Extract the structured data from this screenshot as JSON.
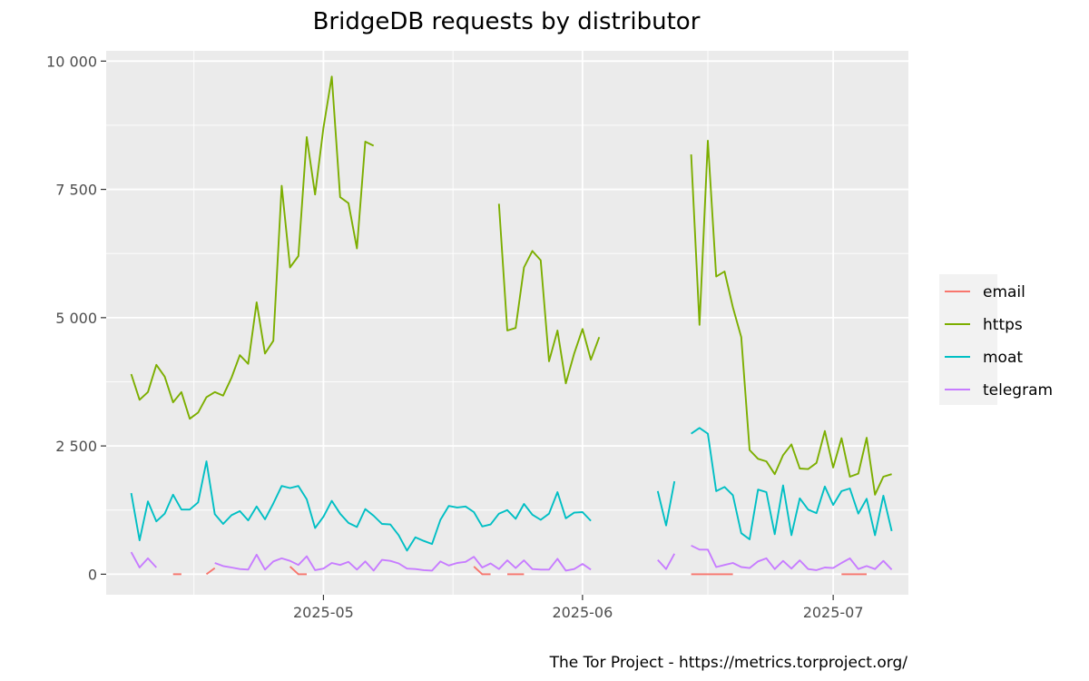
{
  "chart_data": {
    "type": "line",
    "title": "BridgeDB requests by distributor",
    "caption": "The Tor Project - https://metrics.torproject.org/",
    "xlabel": "",
    "ylabel": "",
    "x_start": "2025-04-08",
    "xlim": [
      "2025-04-05",
      "2025-07-10"
    ],
    "x_ticks": [
      {
        "date": "2025-05-01",
        "label": "2025-05"
      },
      {
        "date": "2025-06-01",
        "label": "2025-06"
      },
      {
        "date": "2025-07-01",
        "label": "2025-07"
      }
    ],
    "ylim": [
      -400,
      10200
    ],
    "y_ticks": [
      {
        "value": 0,
        "label": "0"
      },
      {
        "value": 2500,
        "label": "2 500"
      },
      {
        "value": 5000,
        "label": "5 000"
      },
      {
        "value": 7500,
        "label": "7 500"
      },
      {
        "value": 10000,
        "label": "10 000"
      }
    ],
    "grid": true,
    "legend_position": "right",
    "series": [
      {
        "name": "email",
        "color": "#F8766D",
        "values": [
          null,
          null,
          null,
          null,
          null,
          0,
          0,
          null,
          null,
          0,
          120,
          null,
          null,
          null,
          null,
          null,
          null,
          null,
          null,
          150,
          0,
          0,
          null,
          null,
          null,
          null,
          null,
          null,
          null,
          null,
          null,
          null,
          null,
          null,
          null,
          null,
          null,
          null,
          null,
          null,
          null,
          150,
          0,
          0,
          null,
          0,
          0,
          0,
          null,
          null,
          null,
          null,
          null,
          null,
          null,
          null,
          null,
          null,
          null,
          null,
          null,
          null,
          null,
          null,
          null,
          null,
          null,
          0,
          0,
          0,
          0,
          0,
          0,
          null,
          null,
          null,
          null,
          null,
          null,
          null,
          null,
          null,
          null,
          null,
          null,
          0,
          0,
          0,
          0,
          null,
          null,
          null,
          null,
          null,
          null,
          null,
          null,
          null,
          null
        ]
      },
      {
        "name": "https",
        "color": "#7CAE00",
        "values": [
          3900,
          3400,
          3550,
          4080,
          3850,
          3350,
          3550,
          3030,
          3150,
          3450,
          3550,
          3480,
          3830,
          4270,
          4100,
          5300,
          4300,
          4550,
          7570,
          5980,
          6200,
          8520,
          7400,
          8700,
          9700,
          7350,
          7230,
          6350,
          8430,
          8350,
          null,
          null,
          null,
          null,
          null,
          null,
          null,
          null,
          null,
          null,
          null,
          null,
          null,
          null,
          7220,
          4750,
          4800,
          5980,
          6300,
          6120,
          4150,
          4750,
          3720,
          4300,
          4780,
          4180,
          4620,
          null,
          null,
          null,
          null,
          null,
          null,
          null,
          null,
          null,
          null,
          8180,
          4860,
          8450,
          5800,
          5900,
          5200,
          4620,
          2420,
          2250,
          2200,
          1950,
          2320,
          2530,
          2060,
          2050,
          2170,
          2790,
          2080,
          2650,
          1900,
          1960,
          2660,
          1550,
          1900,
          1950
        ]
      },
      {
        "name": "moat",
        "color": "#00BFC4",
        "values": [
          1580,
          660,
          1420,
          1030,
          1180,
          1550,
          1260,
          1260,
          1400,
          2200,
          1170,
          980,
          1150,
          1230,
          1050,
          1320,
          1070,
          1380,
          1720,
          1680,
          1720,
          1460,
          900,
          1120,
          1430,
          1180,
          1000,
          920,
          1270,
          1140,
          980,
          970,
          760,
          460,
          720,
          650,
          590,
          1060,
          1330,
          1300,
          1320,
          1210,
          930,
          970,
          1180,
          1250,
          1080,
          1370,
          1160,
          1060,
          1180,
          1600,
          1090,
          1200,
          1210,
          1040,
          null,
          null,
          null,
          null,
          null,
          null,
          null,
          1620,
          950,
          1810,
          null,
          2740,
          2850,
          2740,
          1620,
          1700,
          1540,
          800,
          680,
          1650,
          1600,
          780,
          1730,
          760,
          1480,
          1260,
          1190,
          1710,
          1350,
          1620,
          1670,
          1180,
          1470,
          760,
          1530,
          840
        ]
      },
      {
        "name": "telegram",
        "color": "#C77CFF",
        "values": [
          430,
          130,
          310,
          130,
          null,
          null,
          null,
          null,
          null,
          null,
          220,
          160,
          130,
          100,
          90,
          380,
          90,
          250,
          310,
          260,
          180,
          350,
          80,
          110,
          220,
          180,
          240,
          90,
          250,
          70,
          280,
          260,
          210,
          110,
          100,
          80,
          70,
          250,
          170,
          220,
          240,
          340,
          130,
          210,
          100,
          270,
          120,
          270,
          100,
          90,
          90,
          300,
          70,
          100,
          200,
          90,
          null,
          null,
          null,
          null,
          null,
          null,
          null,
          280,
          100,
          400,
          null,
          560,
          480,
          480,
          140,
          180,
          220,
          140,
          120,
          250,
          310,
          100,
          260,
          110,
          270,
          100,
          80,
          130,
          120,
          220,
          310,
          100,
          160,
          100,
          260,
          90
        ]
      }
    ]
  }
}
